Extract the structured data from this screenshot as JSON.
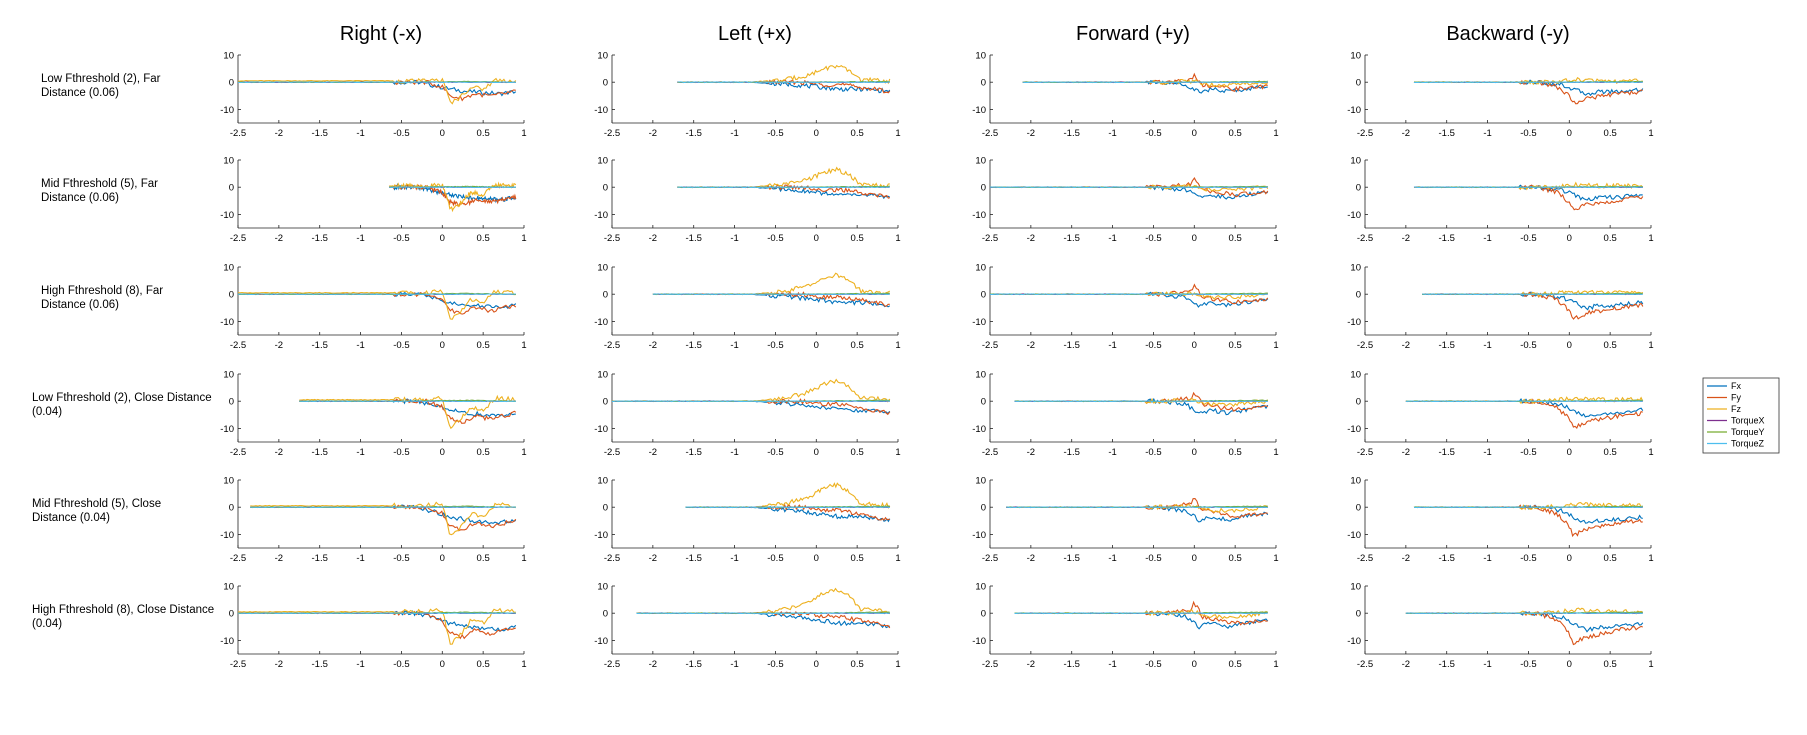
{
  "figure": {
    "column_titles": [
      "Right (-x)",
      "Left (+x)",
      "Forward (+y)",
      "Backward (-y)"
    ],
    "row_labels": [
      [
        "Low Fthreshold (2), Far",
        "Distance (0.06)"
      ],
      [
        "Mid Fthreshold (5), Far",
        "Distance (0.06)"
      ],
      [
        "High Fthreshold (8), Far",
        "Distance (0.06)"
      ],
      [
        "Low Fthreshold (2), Close Distance",
        "(0.04)"
      ],
      [
        "Mid Fthreshold (5), Close",
        "Distance (0.04)"
      ],
      [
        "High Fthreshold (8), Close Distance",
        "(0.04)"
      ]
    ]
  },
  "chart_data": {
    "type": "line",
    "layout": "grid 6 rows x 4 columns of small-multiple line plots",
    "xlim": [
      -2.5,
      1
    ],
    "ylim": [
      -15,
      10
    ],
    "xticks": [
      "-2.5",
      "-2",
      "-1.5",
      "-1",
      "-0.5",
      "0",
      "0.5",
      "1"
    ],
    "yticks": [
      "10",
      "0",
      "-10"
    ],
    "grid": false,
    "legend": {
      "placement": "right",
      "entries": [
        "Fx",
        "Fy",
        "Fz",
        "TorqueX",
        "TorqueY",
        "TorqueZ"
      ],
      "colors": [
        "#0072BD",
        "#D95319",
        "#EDB120",
        "#7E2F8E",
        "#77AC30",
        "#4DBEEE"
      ]
    },
    "x_start_by_panel": [
      [
        -2.5,
        -1.7,
        -2.1,
        -1.9
      ],
      [
        -0.65,
        -1.7,
        -2.5,
        -1.9
      ],
      [
        -2.5,
        -2.0,
        -2.5,
        -1.8
      ],
      [
        -1.75,
        -2.5,
        -2.2,
        -2.0
      ],
      [
        -2.35,
        -1.6,
        -2.3,
        -1.9
      ],
      [
        -2.5,
        -2.2,
        -2.2,
        -2.0
      ]
    ],
    "x_end": 0.9,
    "series_templates": {
      "Right (-x)": {
        "Fx": [
          [
            -0.3,
            0
          ],
          [
            -0.1,
            -1.5
          ],
          [
            0.1,
            -3
          ],
          [
            0.3,
            -4
          ],
          [
            0.5,
            -4.5
          ],
          [
            0.7,
            -5
          ],
          [
            0.9,
            -4
          ]
        ],
        "Fy": [
          [
            -0.2,
            0
          ],
          [
            0,
            -2
          ],
          [
            0.1,
            -6
          ],
          [
            0.25,
            -7
          ],
          [
            0.4,
            -5
          ],
          [
            0.6,
            -6
          ],
          [
            0.75,
            -5
          ],
          [
            0.9,
            -4
          ]
        ],
        "Fz": [
          [
            -0.2,
            0.5
          ],
          [
            0,
            1
          ],
          [
            0.1,
            -9
          ],
          [
            0.2,
            -7
          ],
          [
            0.35,
            -2
          ],
          [
            0.5,
            -3
          ],
          [
            0.65,
            1
          ],
          [
            0.9,
            0.5
          ]
        ],
        "TorqueX": [
          [
            -0.5,
            0
          ],
          [
            0.9,
            0
          ]
        ],
        "TorqueY": [
          [
            -0.5,
            0
          ],
          [
            0.3,
            0.3
          ],
          [
            0.9,
            0
          ]
        ],
        "TorqueZ": [
          [
            0,
            0
          ],
          [
            0.9,
            0
          ]
        ]
      },
      "Left (+x)": {
        "Fx": [
          [
            -0.8,
            0
          ],
          [
            -0.3,
            -1
          ],
          [
            0,
            -2
          ],
          [
            0.3,
            -3
          ],
          [
            0.6,
            -3
          ],
          [
            0.9,
            -4
          ]
        ],
        "Fy": [
          [
            -0.2,
            0
          ],
          [
            0.1,
            -1
          ],
          [
            0.3,
            -1
          ],
          [
            0.5,
            -2
          ],
          [
            0.7,
            -3
          ],
          [
            0.9,
            -4
          ]
        ],
        "Fz": [
          [
            -0.8,
            0
          ],
          [
            -0.4,
            1
          ],
          [
            -0.1,
            3
          ],
          [
            0.1,
            6
          ],
          [
            0.25,
            7
          ],
          [
            0.4,
            5
          ],
          [
            0.55,
            1
          ],
          [
            0.9,
            0.5
          ]
        ],
        "TorqueX": [
          [
            -0.3,
            0
          ],
          [
            0.9,
            0
          ]
        ],
        "TorqueY": [
          [
            -0.3,
            0
          ],
          [
            0.9,
            0.3
          ]
        ],
        "TorqueZ": [
          [
            0,
            0
          ],
          [
            0.9,
            0
          ]
        ]
      },
      "Forward (+y)": {
        "Fx": [
          [
            -0.5,
            0
          ],
          [
            -0.1,
            -1
          ],
          [
            0.05,
            -4
          ],
          [
            0.2,
            -3
          ],
          [
            0.4,
            -4
          ],
          [
            0.6,
            -3
          ],
          [
            0.85,
            -2
          ]
        ],
        "Fy": [
          [
            -0.4,
            0
          ],
          [
            -0.05,
            1
          ],
          [
            0.0,
            3
          ],
          [
            0.1,
            -1
          ],
          [
            0.3,
            -2
          ],
          [
            0.5,
            -3
          ],
          [
            0.85,
            -2
          ]
        ],
        "Fz": [
          [
            -0.3,
            0
          ],
          [
            0,
            0.5
          ],
          [
            0.2,
            -1
          ],
          [
            0.5,
            -1
          ],
          [
            0.85,
            0
          ]
        ],
        "TorqueX": [
          [
            -0.3,
            0
          ],
          [
            0.85,
            0
          ]
        ],
        "TorqueY": [
          [
            -0.3,
            0
          ],
          [
            0.85,
            0.3
          ]
        ],
        "TorqueZ": [
          [
            0,
            0
          ],
          [
            0.85,
            0
          ]
        ]
      },
      "Backward (-y)": {
        "Fx": [
          [
            -0.4,
            0
          ],
          [
            -0.1,
            -1
          ],
          [
            0.05,
            -3
          ],
          [
            0.2,
            -5
          ],
          [
            0.4,
            -4
          ],
          [
            0.6,
            -4
          ],
          [
            0.9,
            -3
          ]
        ],
        "Fy": [
          [
            -0.4,
            0
          ],
          [
            -0.15,
            -2
          ],
          [
            0.0,
            -6
          ],
          [
            0.05,
            -9
          ],
          [
            0.2,
            -7
          ],
          [
            0.4,
            -6
          ],
          [
            0.6,
            -5
          ],
          [
            0.9,
            -4
          ]
        ],
        "Fz": [
          [
            -0.4,
            0
          ],
          [
            -0.1,
            0.5
          ],
          [
            0.1,
            1
          ],
          [
            0.4,
            0.5
          ],
          [
            0.9,
            0.5
          ]
        ],
        "TorqueX": [
          [
            -0.4,
            0
          ],
          [
            0.9,
            0
          ]
        ],
        "TorqueY": [
          [
            -0.4,
            0
          ],
          [
            0.9,
            0.3
          ]
        ],
        "TorqueZ": [
          [
            0,
            0
          ],
          [
            0.9,
            0
          ]
        ]
      }
    }
  }
}
